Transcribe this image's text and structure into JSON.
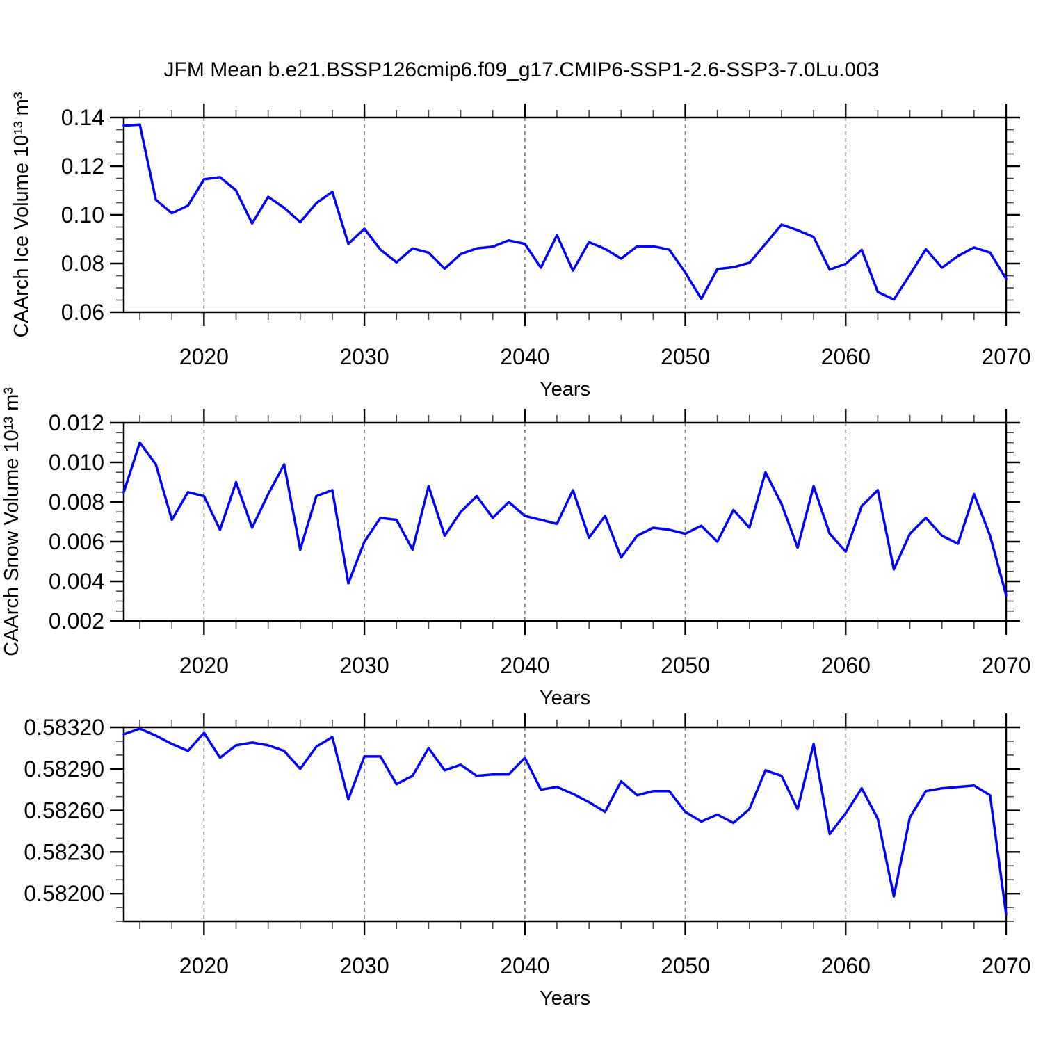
{
  "title": "JFM Mean b.e21.BSSP126cmip6.f09_g17.CMIP6-SSP1-2.6-SSP3-7.0Lu.003",
  "colors": {
    "line": "#0000ff",
    "axis": "#000000",
    "grid": "#7a7a7a",
    "minor_tick": "#444444"
  },
  "chart_data": [
    {
      "type": "line",
      "name": "ice-volume",
      "ylabel": "CAArch Ice Volume 10¹³ m³",
      "xlabel": "Years",
      "xlim": [
        2015,
        2070
      ],
      "x_years": {
        "start": 2015,
        "end": 2070,
        "step": 1
      },
      "ylim": [
        0.06,
        0.14
      ],
      "yticks_major": [
        0.06,
        0.08,
        0.1,
        0.12,
        0.14
      ],
      "ytick_labels": [
        "0.06",
        "0.08",
        "0.10",
        "0.12",
        "0.14"
      ],
      "ytick_minor_step": 0.005,
      "xticks_major": [
        2020,
        2030,
        2040,
        2050,
        2060,
        2070
      ],
      "xtick_labels": [
        "2020",
        "2030",
        "2040",
        "2050",
        "2060",
        "2070"
      ],
      "xtick_minor_step": 2,
      "grid_x": [
        2020,
        2030,
        2040,
        2050,
        2060
      ],
      "values": [
        0.1367,
        0.1371,
        0.1062,
        0.1007,
        0.1038,
        0.1146,
        0.1155,
        0.11,
        0.0965,
        0.1074,
        0.1029,
        0.097,
        0.1048,
        0.1095,
        0.0881,
        0.0943,
        0.0857,
        0.0805,
        0.0862,
        0.0845,
        0.0779,
        0.0839,
        0.0862,
        0.0869,
        0.0895,
        0.0881,
        0.0783,
        0.0916,
        0.0771,
        0.0888,
        0.086,
        0.082,
        0.0871,
        0.0871,
        0.0857,
        0.0763,
        0.0655,
        0.0777,
        0.0785,
        0.0803,
        0.0881,
        0.096,
        0.0937,
        0.0909,
        0.0775,
        0.0799,
        0.0856,
        0.0683,
        0.0652,
        0.0754,
        0.0859,
        0.0783,
        0.0831,
        0.0866,
        0.0845,
        0.0737
      ]
    },
    {
      "type": "line",
      "name": "snow-volume",
      "ylabel": "CAArch Snow Volume 10¹³ m³",
      "xlabel": "Years",
      "xlim": [
        2015,
        2070
      ],
      "x_years": {
        "start": 2015,
        "end": 2070,
        "step": 1
      },
      "ylim": [
        0.002,
        0.012
      ],
      "yticks_major": [
        0.002,
        0.004,
        0.006,
        0.008,
        0.01,
        0.012
      ],
      "ytick_labels": [
        "0.002",
        "0.004",
        "0.006",
        "0.008",
        "0.010",
        "0.012"
      ],
      "ytick_minor_step": 0.0005,
      "xticks_major": [
        2020,
        2030,
        2040,
        2050,
        2060,
        2070
      ],
      "xtick_labels": [
        "2020",
        "2030",
        "2040",
        "2050",
        "2060",
        "2070"
      ],
      "xtick_minor_step": 2,
      "grid_x": [
        2020,
        2030,
        2040,
        2050,
        2060
      ],
      "values": [
        0.0085,
        0.011,
        0.0099,
        0.0071,
        0.0085,
        0.0083,
        0.0066,
        0.009,
        0.0067,
        0.0084,
        0.0099,
        0.0056,
        0.0083,
        0.0086,
        0.0039,
        0.006,
        0.0072,
        0.0071,
        0.0056,
        0.0088,
        0.0063,
        0.0075,
        0.0083,
        0.0072,
        0.008,
        0.0073,
        0.0071,
        0.0069,
        0.0086,
        0.0062,
        0.0073,
        0.0052,
        0.0063,
        0.0067,
        0.0066,
        0.0064,
        0.0068,
        0.006,
        0.0076,
        0.0067,
        0.0095,
        0.0079,
        0.0057,
        0.0088,
        0.0064,
        0.0055,
        0.0078,
        0.0086,
        0.0046,
        0.0064,
        0.0072,
        0.0063,
        0.0059,
        0.0084,
        0.0063,
        0.0033
      ]
    },
    {
      "type": "line",
      "name": "third-metric",
      "ylabel": "",
      "xlabel": "Years",
      "xlim": [
        2015,
        2070
      ],
      "x_years": {
        "start": 2015,
        "end": 2070,
        "step": 1
      },
      "ylim": [
        0.5818,
        0.5832
      ],
      "yticks_major": [
        0.582,
        0.5823,
        0.5826,
        0.5829,
        0.5832
      ],
      "ytick_labels": [
        "0.58200",
        "0.58230",
        "0.58260",
        "0.58290",
        "0.58320"
      ],
      "ytick_minor_step": 0.0001,
      "xticks_major": [
        2020,
        2030,
        2040,
        2050,
        2060,
        2070
      ],
      "xtick_labels": [
        "2020",
        "2030",
        "2040",
        "2050",
        "2060",
        "2070"
      ],
      "xtick_minor_step": 2,
      "grid_x": [
        2020,
        2030,
        2040,
        2050,
        2060
      ],
      "values": [
        0.58315,
        0.58319,
        0.58314,
        0.58308,
        0.58303,
        0.58316,
        0.58298,
        0.58307,
        0.58309,
        0.58307,
        0.58303,
        0.5829,
        0.58306,
        0.58313,
        0.58268,
        0.58299,
        0.58299,
        0.58279,
        0.58285,
        0.58305,
        0.58289,
        0.58293,
        0.58285,
        0.58286,
        0.58286,
        0.58298,
        0.58275,
        0.58277,
        0.58272,
        0.58266,
        0.58259,
        0.58281,
        0.58271,
        0.58274,
        0.58274,
        0.58259,
        0.58252,
        0.58257,
        0.58251,
        0.58261,
        0.58289,
        0.58285,
        0.58261,
        0.58308,
        0.58243,
        0.58258,
        0.58276,
        0.58254,
        0.58198,
        0.58255,
        0.58274,
        0.58276,
        0.58277,
        0.58278,
        0.58271,
        0.58185
      ]
    }
  ]
}
